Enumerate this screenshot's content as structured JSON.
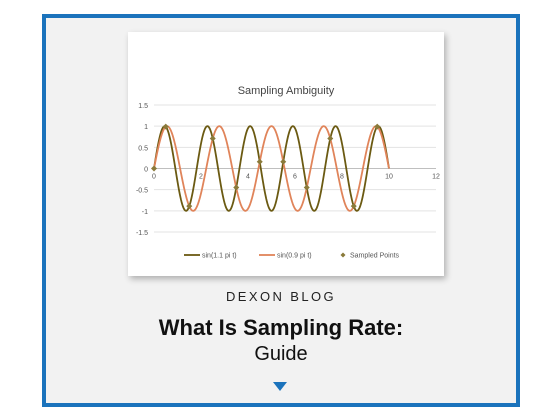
{
  "site": {
    "blog_label": "DEXON BLOG",
    "title_line1": "What Is Sampling Rate:",
    "title_line2": "Guide",
    "accent_color": "#1b73bc",
    "arrow_icon": "down-triangle-icon"
  },
  "chart_data": {
    "type": "line",
    "title": "Sampling Ambiguity",
    "xlabel": "",
    "ylabel": "",
    "xlim": [
      0,
      12
    ],
    "ylim": [
      -1.5,
      1.5
    ],
    "x_ticks": [
      "0",
      "2",
      "4",
      "6",
      "8",
      "10",
      "12"
    ],
    "y_ticks": [
      "1.5",
      "1",
      "0.5",
      "0",
      "-0.5",
      "-1",
      "-1.5"
    ],
    "grid": true,
    "legend_position": "bottom",
    "series": [
      {
        "name": "sin(1.1 pi t)",
        "freq_pi_multiple": 1.1,
        "x_range": [
          0,
          10
        ],
        "color": "#6b5a12"
      },
      {
        "name": "sin(0.9 pi t)",
        "freq_pi_multiple": 0.9,
        "x_range": [
          0,
          10
        ],
        "color": "#e0845a"
      },
      {
        "name": "Sampled Points",
        "color": "#8a7a3a",
        "points": [
          [
            0,
            0
          ],
          [
            0.5,
            0.99
          ],
          [
            1.5,
            -0.89
          ],
          [
            2.5,
            0.71
          ],
          [
            3.5,
            -0.45
          ],
          [
            4.5,
            0.16
          ],
          [
            5.5,
            0.16
          ],
          [
            6.5,
            -0.45
          ],
          [
            7.5,
            0.71
          ],
          [
            8.5,
            -0.89
          ],
          [
            9.5,
            0.99
          ]
        ]
      }
    ]
  }
}
